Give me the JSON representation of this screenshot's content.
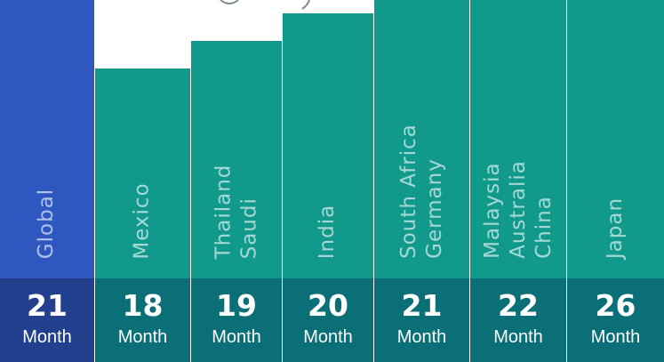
{
  "chart_data": {
    "type": "bar",
    "categories": [
      "Global",
      "Mexico",
      "Thailand\nSaudi",
      "India",
      "South Africa\nGermany",
      "Malaysia\nAustralia\nChina",
      "Japan"
    ],
    "values": [
      21,
      18,
      19,
      20,
      21,
      22,
      26
    ],
    "value_labels": [
      "21",
      "18",
      "19",
      "20",
      "21",
      "22",
      "26"
    ],
    "unit_label": "Month",
    "highlight_category": "Global"
  },
  "colors": {
    "highlight_bar": "#2f57c0",
    "highlight_base": "#23408f",
    "bar": "#11998c",
    "base": "#0b6f77",
    "separator": "#ffffff"
  }
}
